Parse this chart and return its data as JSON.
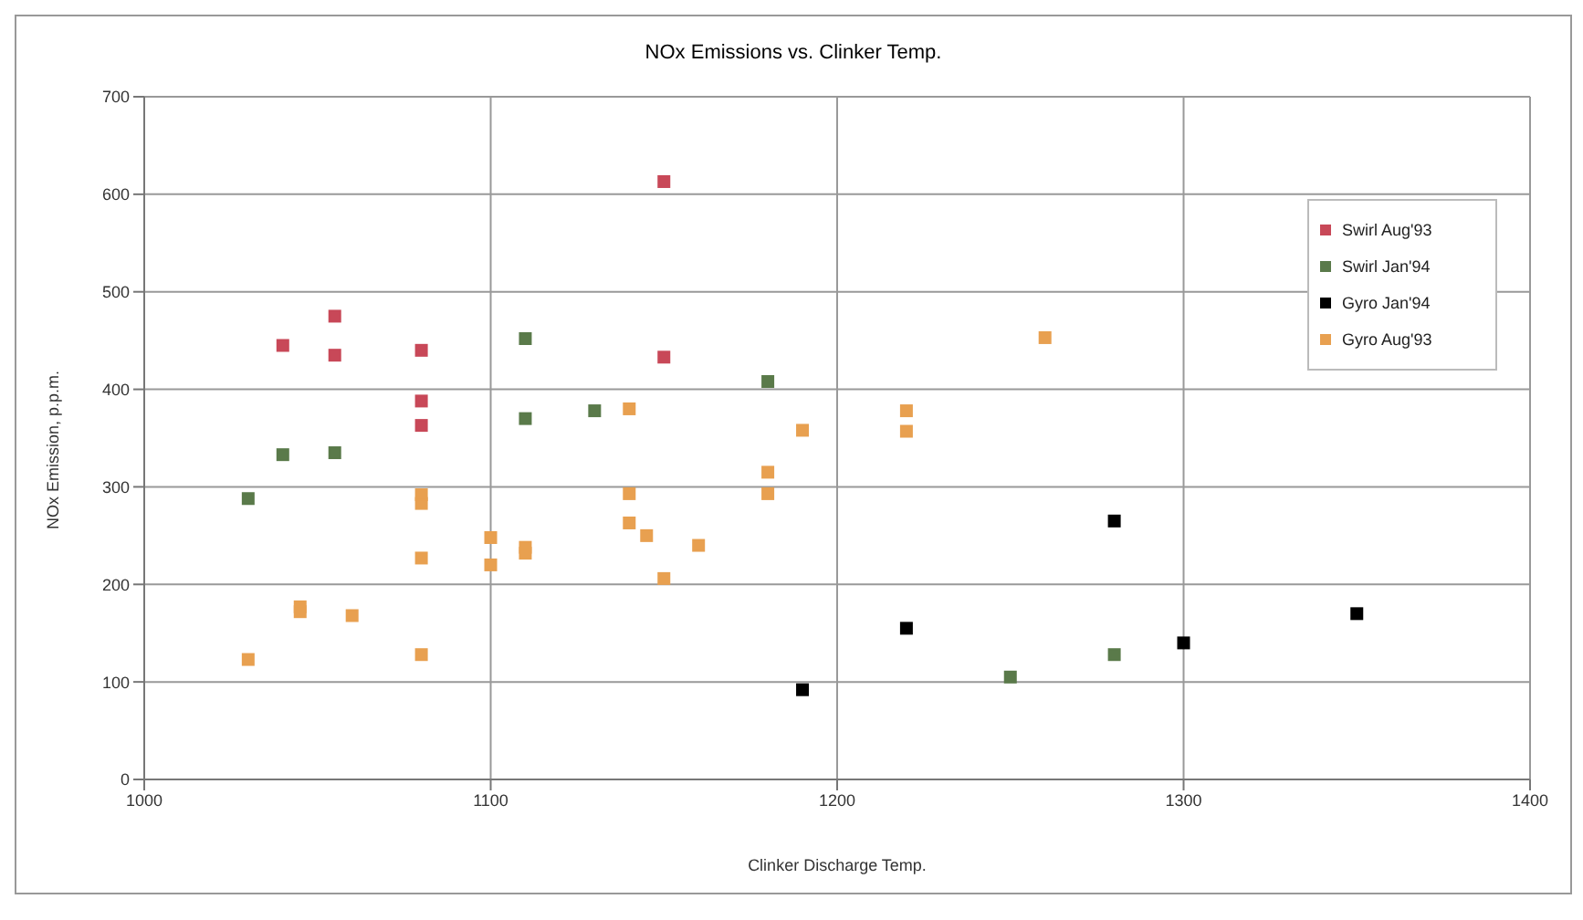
{
  "chart_data": {
    "type": "scatter",
    "title": "NOx Emissions vs. Clinker Temp.",
    "xlabel": "Clinker Discharge Temp.",
    "ylabel": "NOx Emission, p.p.m.",
    "xlim": [
      1000,
      1400
    ],
    "xticks": [
      1000,
      1100,
      1200,
      1300,
      1400
    ],
    "ylim": [
      0,
      700
    ],
    "yticks": [
      0,
      100,
      200,
      300,
      400,
      500,
      600,
      700
    ],
    "grid": true,
    "legend": "top right",
    "marker": "square",
    "series": [
      {
        "name": "Swirl Aug'93",
        "color": "#c84858",
        "x": [
          1040,
          1055,
          1055,
          1080,
          1080,
          1080,
          1150,
          1150
        ],
        "values": [
          445,
          475,
          435,
          440,
          388,
          363,
          613,
          433
        ]
      },
      {
        "name": "Swirl Jan'94",
        "color": "#5a7a4a",
        "x": [
          1030,
          1040,
          1055,
          1110,
          1110,
          1130,
          1180,
          1250,
          1280
        ],
        "values": [
          288,
          333,
          335,
          452,
          370,
          378,
          408,
          105,
          128
        ]
      },
      {
        "name": "Gyro Jan'94",
        "color": "#000000",
        "x": [
          1190,
          1220,
          1280,
          1300,
          1350
        ],
        "values": [
          92,
          155,
          265,
          140,
          170
        ]
      },
      {
        "name": "Gyro Aug'93",
        "color": "#e8a050",
        "x": [
          1030,
          1045,
          1045,
          1060,
          1080,
          1080,
          1080,
          1080,
          1100,
          1100,
          1110,
          1110,
          1140,
          1140,
          1140,
          1145,
          1150,
          1160,
          1180,
          1180,
          1190,
          1220,
          1220,
          1260
        ],
        "values": [
          123,
          177,
          172,
          168,
          128,
          227,
          283,
          292,
          248,
          220,
          238,
          232,
          380,
          293,
          263,
          250,
          206,
          240,
          315,
          293,
          358,
          378,
          357,
          453
        ]
      }
    ]
  }
}
